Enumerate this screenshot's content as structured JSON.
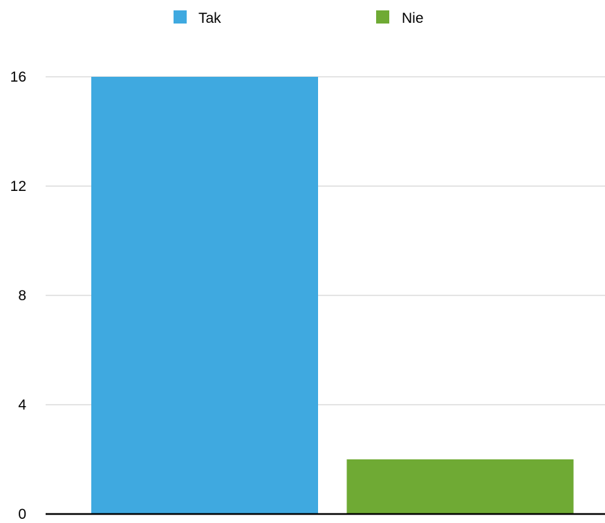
{
  "chart_data": {
    "type": "bar",
    "title": "",
    "xlabel": "",
    "ylabel": "",
    "categories": [
      "Tak",
      "Nie"
    ],
    "series": [
      {
        "name": "Tak",
        "color": "#3fa9e0",
        "values": [
          16,
          null
        ]
      },
      {
        "name": "Nie",
        "color": "#6faa34",
        "values": [
          null,
          2
        ]
      }
    ],
    "ylim": [
      0,
      16
    ],
    "yticks": [
      "0",
      "4",
      "8",
      "12",
      "16"
    ],
    "grid": true,
    "legend_position": "top-center"
  }
}
